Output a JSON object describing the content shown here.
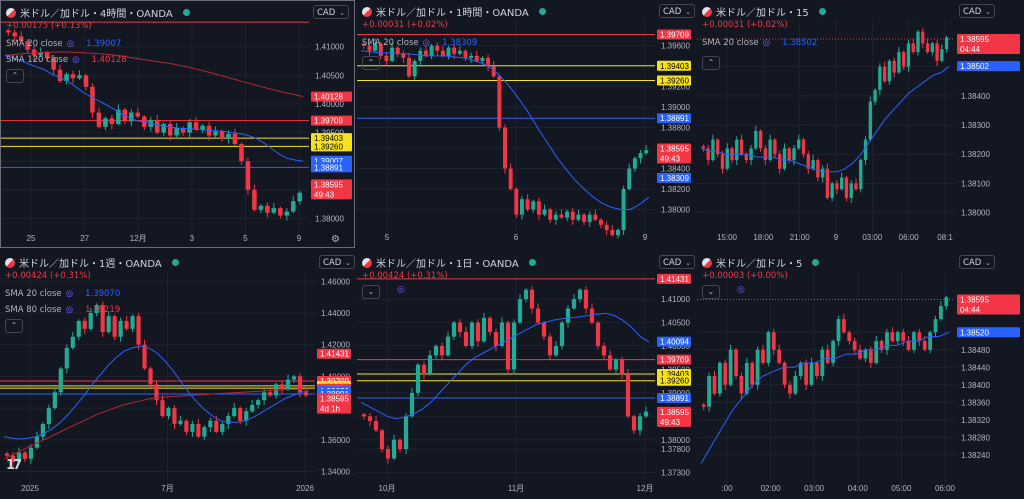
{
  "colors": {
    "up": "#22ab94",
    "down": "#f23645",
    "sma_blue": "#2962ff",
    "sma_red": "#b22833",
    "yellow": "#f7e21a",
    "bg": "#131722"
  },
  "chart_data": [
    {
      "id": "p1",
      "type": "candlestick",
      "title": "米ドル／加ドル・4時間・OANDA",
      "change": "+0.00175 (+0.13%)",
      "currency": "CAD",
      "indicators": [
        {
          "name": "SMA 20 close",
          "value": "1.39007",
          "color": "#2962ff"
        },
        {
          "name": "SMA 120 close",
          "value": "1.40128",
          "color": "#f23645"
        }
      ],
      "y_range": [
        1.3778,
        1.4145
      ],
      "y_ticks": [
        "1.41000",
        "1.40500",
        "1.40000",
        "1.39500",
        "1.39000",
        "1.38500",
        "1.38000"
      ],
      "x_ticks": [
        "25",
        "27",
        "12月",
        "3",
        "5",
        "9"
      ],
      "hlines": [
        {
          "value": 1.41431,
          "color": "#f23645"
        },
        {
          "value": 1.39709,
          "color": "#f23645"
        },
        {
          "value": 1.39403,
          "color": "#f7e21a"
        },
        {
          "value": 1.3926,
          "color": "#f7e21a"
        },
        {
          "value": 1.38891,
          "color": "#2962ff"
        }
      ],
      "labels": [
        {
          "text": "1.40128",
          "value": 1.40128,
          "bg": "#f23645",
          "fg": "#ffffff"
        },
        {
          "text": "1.39709",
          "value": 1.39709,
          "bg": "#f23645",
          "fg": "#ffffff"
        },
        {
          "text": "1.39403",
          "value": 1.39403,
          "bg": "#f7e21a",
          "fg": "#000000"
        },
        {
          "text": "1.39260",
          "value": 1.3926,
          "bg": "#f7e21a",
          "fg": "#000000"
        },
        {
          "text": "1.39007",
          "value": 1.39007,
          "bg": "#2962ff",
          "fg": "#ffffff"
        },
        {
          "text": "1.38891",
          "value": 1.38891,
          "bg": "#2962ff",
          "fg": "#ffffff"
        },
        {
          "text": "1.38595",
          "value": 1.38595,
          "bg": "#f23645",
          "fg": "#ffffff",
          "sub": "49:43"
        }
      ],
      "closes": [
        1.4125,
        1.4118,
        1.411,
        1.4095,
        1.4085,
        1.409,
        1.408,
        1.406,
        1.404,
        1.4052,
        1.4045,
        1.405,
        1.403,
        1.3985,
        1.396,
        1.3975,
        1.3965,
        1.399,
        1.397,
        1.3985,
        1.3978,
        1.396,
        1.3972,
        1.395,
        1.3965,
        1.3945,
        1.3958,
        1.395,
        1.3968,
        1.3955,
        1.3962,
        1.3945,
        1.3952,
        1.394,
        1.3948,
        1.393,
        1.39,
        1.385,
        1.3815,
        1.3822,
        1.381,
        1.3818,
        1.3805,
        1.3812,
        1.383,
        1.3845
      ],
      "sma_a": [
        1.4085,
        1.408,
        1.4076,
        1.407,
        1.4065,
        1.406,
        1.4052,
        1.4046,
        1.404,
        1.403,
        1.402,
        1.4012,
        1.4005,
        1.3998,
        1.399,
        1.3982,
        1.3975,
        1.397,
        1.3968,
        1.3965,
        1.3962,
        1.396,
        1.3958,
        1.3957,
        1.3956,
        1.3955,
        1.3954,
        1.3953,
        1.3952,
        1.395,
        1.3948,
        1.3945,
        1.394,
        1.3932,
        1.3922,
        1.3912,
        1.3905,
        1.3902,
        1.39
      ],
      "sma_b": [
        1.4085,
        1.4088,
        1.409,
        1.4091,
        1.409,
        1.4088,
        1.4085,
        1.408,
        1.4075,
        1.407,
        1.4063,
        1.4055,
        1.4046,
        1.4037,
        1.4028,
        1.402,
        1.4013
      ]
    },
    {
      "id": "p2",
      "type": "candlestick",
      "title": "米ドル／加ドル・1時間・OANDA",
      "change": "+0.00031 (+0.02%)",
      "currency": "CAD",
      "indicators": [
        {
          "name": "SMA 20 close",
          "value": "1.38309",
          "color": "#2962ff"
        }
      ],
      "y_range": [
        1.378,
        1.3985
      ],
      "y_ticks": [
        "1.39600",
        "1.39400",
        "1.39200",
        "1.39000",
        "1.38800",
        "1.38600",
        "1.38400",
        "1.38200",
        "1.38000"
      ],
      "x_ticks": [
        "5",
        "6",
        "9"
      ],
      "hlines": [
        {
          "value": 1.39709,
          "color": "#f23645"
        },
        {
          "value": 1.39403,
          "color": "#f7e21a"
        },
        {
          "value": 1.3926,
          "color": "#f7e21a"
        },
        {
          "value": 1.38891,
          "color": "#2962ff"
        }
      ],
      "labels": [
        {
          "text": "1.39709",
          "value": 1.39709,
          "bg": "#f23645",
          "fg": "#ffffff"
        },
        {
          "text": "1.39403",
          "value": 1.39403,
          "bg": "#f7e21a",
          "fg": "#000000"
        },
        {
          "text": "1.39260",
          "value": 1.3926,
          "bg": "#f7e21a",
          "fg": "#000000"
        },
        {
          "text": "1.38891",
          "value": 1.38891,
          "bg": "#2962ff",
          "fg": "#ffffff"
        },
        {
          "text": "1.38595",
          "value": 1.38595,
          "bg": "#f23645",
          "fg": "#ffffff",
          "sub": "49:43"
        },
        {
          "text": "1.38309",
          "value": 1.38309,
          "bg": "#2962ff",
          "fg": "#ffffff"
        }
      ],
      "closes": [
        1.396,
        1.3955,
        1.3962,
        1.395,
        1.3945,
        1.3958,
        1.3952,
        1.3948,
        1.393,
        1.3945,
        1.3955,
        1.395,
        1.396,
        1.3955,
        1.395,
        1.3958,
        1.3952,
        1.3955,
        1.3948,
        1.395,
        1.3945,
        1.3948,
        1.394,
        1.393,
        1.388,
        1.384,
        1.382,
        1.3795,
        1.381,
        1.38,
        1.3808,
        1.3795,
        1.38,
        1.379,
        1.3795,
        1.3792,
        1.3798,
        1.379,
        1.3795,
        1.3788,
        1.3795,
        1.379,
        1.3785,
        1.378,
        1.3775,
        1.378,
        1.382,
        1.384,
        1.385,
        1.3855,
        1.3858
      ],
      "sma_a": [
        1.3955,
        1.3954,
        1.3953,
        1.3953,
        1.3952,
        1.3952,
        1.3951,
        1.395,
        1.395,
        1.395,
        1.3949,
        1.3948,
        1.3946,
        1.3943,
        1.3938,
        1.393,
        1.392,
        1.3908,
        1.3895,
        1.388,
        1.3866,
        1.3852,
        1.384,
        1.3829,
        1.382,
        1.3812,
        1.3806,
        1.3802,
        1.38,
        1.38,
        1.3805,
        1.3812
      ]
    },
    {
      "id": "p3",
      "type": "candlestick",
      "title": "米ドル／加ドル・15",
      "change": "+0.00031 (+0.02%)",
      "currency": "CAD",
      "indicators": [
        {
          "name": "SMA 20 close",
          "value": "1.38502",
          "color": "#2962ff"
        }
      ],
      "y_range": [
        1.3794,
        1.3866
      ],
      "y_ticks": [
        "1.38500",
        "1.38400",
        "1.38300",
        "1.38200",
        "1.38100",
        "1.38000"
      ],
      "x_ticks": [
        "15:00",
        "18:00",
        "21:00",
        "9",
        "03:00",
        "06:00",
        "08:1"
      ],
      "hlines": [
        {
          "value": 1.38595,
          "color": "#f23645",
          "dotted": true
        }
      ],
      "labels": [
        {
          "text": "1.38595",
          "value": 1.38595,
          "bg": "#f23645",
          "fg": "#ffffff",
          "sub": "04:44"
        },
        {
          "text": "1.38502",
          "value": 1.38502,
          "bg": "#2962ff",
          "fg": "#ffffff"
        }
      ],
      "closes": [
        1.3822,
        1.3818,
        1.3825,
        1.382,
        1.3815,
        1.3822,
        1.3818,
        1.3825,
        1.382,
        1.3818,
        1.3822,
        1.3828,
        1.3822,
        1.3818,
        1.3825,
        1.382,
        1.3815,
        1.3822,
        1.3818,
        1.3822,
        1.3825,
        1.382,
        1.3815,
        1.3818,
        1.3812,
        1.3815,
        1.3805,
        1.381,
        1.3808,
        1.3812,
        1.3805,
        1.381,
        1.3808,
        1.3818,
        1.3825,
        1.3838,
        1.3842,
        1.385,
        1.3845,
        1.3852,
        1.3848,
        1.3855,
        1.385,
        1.3858,
        1.3855,
        1.3862,
        1.3858,
        1.3855,
        1.3858,
        1.3852,
        1.3856,
        1.386
      ],
      "sma_a": [
        1.3822,
        1.3821,
        1.3821,
        1.382,
        1.382,
        1.382,
        1.382,
        1.3819,
        1.3819,
        1.3819,
        1.3818,
        1.3818,
        1.3817,
        1.3816,
        1.3815,
        1.3814,
        1.3814,
        1.3814,
        1.3815,
        1.3817,
        1.382,
        1.3824,
        1.3828,
        1.3832,
        1.3835,
        1.3838,
        1.3841,
        1.3843,
        1.3845,
        1.3847,
        1.3848,
        1.385
      ]
    },
    {
      "id": "p4",
      "type": "candlestick",
      "title": "米ドル／加ドル・1週・OANDA",
      "change": "+0.00424 (+0.31%)",
      "currency": "CAD",
      "indicators": [
        {
          "name": "SMA 20 close",
          "value": "1.39070",
          "color": "#2962ff"
        },
        {
          "name": "SMA 80 close",
          "value": "1.39219",
          "color": "#f23645"
        }
      ],
      "y_range": [
        1.334,
        1.4665
      ],
      "y_ticks": [
        "1.46000",
        "1.44000",
        "1.42000",
        "1.40000",
        "1.38000",
        "1.36000",
        "1.34000"
      ],
      "x_ticks": [
        "2025",
        "7月",
        "2026"
      ],
      "hlines": [
        {
          "value": 1.39709,
          "color": "#f23645"
        },
        {
          "value": 1.39403,
          "color": "#f7e21a"
        },
        {
          "value": 1.3926,
          "color": "#f7e21a"
        },
        {
          "value": 1.38891,
          "color": "#2962ff"
        }
      ],
      "labels": [
        {
          "text": "1.41431",
          "value": 1.41431,
          "bg": "#f23645",
          "fg": "#ffffff"
        },
        {
          "text": "1.39709",
          "value": 1.39709,
          "bg": "#f23645",
          "fg": "#ffffff"
        },
        {
          "text": "1.39403",
          "value": 1.39403,
          "bg": "#f7e21a",
          "fg": "#000000"
        },
        {
          "text": "1.39260",
          "value": 1.3926,
          "bg": "#f7e21a",
          "fg": "#000000"
        },
        {
          "text": "1.39219",
          "value": 1.39219,
          "bg": "#f23645",
          "fg": "#ffffff"
        },
        {
          "text": "1.39070",
          "value": 1.3907,
          "bg": "#2962ff",
          "fg": "#ffffff"
        },
        {
          "text": "1.38891",
          "value": 1.38891,
          "bg": "#2962ff",
          "fg": "#ffffff"
        },
        {
          "text": "1.38595",
          "value": 1.38595,
          "bg": "#f23645",
          "fg": "#ffffff",
          "sub": "4d 1h"
        }
      ],
      "closes": [
        1.35,
        1.346,
        1.352,
        1.348,
        1.355,
        1.362,
        1.37,
        1.38,
        1.39,
        1.405,
        1.418,
        1.425,
        1.435,
        1.43,
        1.44,
        1.445,
        1.428,
        1.438,
        1.425,
        1.435,
        1.43,
        1.438,
        1.42,
        1.405,
        1.395,
        1.385,
        1.375,
        1.38,
        1.37,
        1.372,
        1.365,
        1.37,
        1.362,
        1.368,
        1.372,
        1.365,
        1.37,
        1.375,
        1.38,
        1.372,
        1.378,
        1.382,
        1.385,
        1.39,
        1.388,
        1.395,
        1.392,
        1.398,
        1.4,
        1.39,
        1.388
      ],
      "sma_a": [
        1.362,
        1.361,
        1.3605,
        1.361,
        1.362,
        1.364,
        1.367,
        1.371,
        1.376,
        1.382,
        1.388,
        1.395,
        1.401,
        1.407,
        1.412,
        1.416,
        1.418,
        1.419,
        1.418,
        1.415,
        1.41,
        1.404,
        1.397,
        1.39,
        1.384,
        1.379,
        1.375,
        1.372,
        1.371,
        1.371,
        1.372,
        1.374,
        1.377,
        1.38,
        1.383,
        1.386,
        1.388,
        1.39,
        1.3907
      ],
      "sma_b": [
        1.348,
        1.352,
        1.356,
        1.36,
        1.364,
        1.368,
        1.372,
        1.376,
        1.379,
        1.382,
        1.384,
        1.386,
        1.387,
        1.3875,
        1.388,
        1.3885,
        1.389,
        1.3895,
        1.39,
        1.3905,
        1.391,
        1.3915,
        1.3918,
        1.3921
      ]
    },
    {
      "id": "p5",
      "type": "candlestick",
      "title": "米ドル／加ドル・1日・OANDA",
      "change": "+0.00424 (+0.31%)",
      "currency": "CAD",
      "indicators": [],
      "y_range": [
        1.3712,
        1.416
      ],
      "y_ticks": [
        "1.41000",
        "1.40500",
        "1.40000",
        "1.39500",
        "1.39000",
        "1.38500",
        "1.38000",
        "1.37800",
        "1.37300"
      ],
      "x_ticks": [
        "10月",
        "11月",
        "12月"
      ],
      "hlines": [
        {
          "value": 1.41431,
          "color": "#f23645"
        },
        {
          "value": 1.39709,
          "color": "#f23645"
        },
        {
          "value": 1.39403,
          "color": "#f7e21a"
        },
        {
          "value": 1.3926,
          "color": "#f7e21a"
        },
        {
          "value": 1.38891,
          "color": "#2962ff"
        }
      ],
      "labels": [
        {
          "text": "1.41431",
          "value": 1.41431,
          "bg": "#f23645",
          "fg": "#ffffff"
        },
        {
          "text": "1.40094",
          "value": 1.40094,
          "bg": "#2962ff",
          "fg": "#ffffff"
        },
        {
          "text": "1.39709",
          "value": 1.39709,
          "bg": "#f23645",
          "fg": "#ffffff"
        },
        {
          "text": "1.39403",
          "value": 1.39403,
          "bg": "#f7e21a",
          "fg": "#000000"
        },
        {
          "text": "1.39260",
          "value": 1.3926,
          "bg": "#f7e21a",
          "fg": "#000000"
        },
        {
          "text": "1.38891",
          "value": 1.38891,
          "bg": "#2962ff",
          "fg": "#ffffff"
        },
        {
          "text": "1.38595",
          "value": 1.38595,
          "bg": "#f23645",
          "fg": "#ffffff",
          "sub": "49:43"
        }
      ],
      "closes": [
        1.385,
        1.384,
        1.382,
        1.378,
        1.376,
        1.38,
        1.378,
        1.385,
        1.39,
        1.396,
        1.394,
        1.398,
        1.4,
        1.398,
        1.402,
        1.405,
        1.403,
        1.4,
        1.405,
        1.401,
        1.406,
        1.403,
        1.4,
        1.405,
        1.395,
        1.405,
        1.41,
        1.412,
        1.408,
        1.405,
        1.402,
        1.398,
        1.4,
        1.405,
        1.408,
        1.41,
        1.412,
        1.408,
        1.405,
        1.4,
        1.398,
        1.395,
        1.397,
        1.394,
        1.385,
        1.382,
        1.385,
        1.386
      ],
      "sma_a": [
        1.388,
        1.387,
        1.386,
        1.385,
        1.3845,
        1.3848,
        1.3855,
        1.3865,
        1.388,
        1.39,
        1.392,
        1.394,
        1.396,
        1.3975,
        1.3985,
        1.3995,
        1.4005,
        1.4015,
        1.4025,
        1.4035,
        1.4045,
        1.405,
        1.4055,
        1.4058,
        1.406,
        1.4062,
        1.4065,
        1.4068,
        1.407,
        1.4065,
        1.4055,
        1.404,
        1.402,
        1.4009
      ]
    },
    {
      "id": "p6",
      "type": "candlestick",
      "title": "米ドル／加ドル・5",
      "change": "+0.00003 (+0.00%)",
      "currency": "CAD",
      "indicators": [],
      "y_range": [
        1.3818,
        1.3866
      ],
      "y_ticks": [
        "1.38520",
        "1.38480",
        "1.38440",
        "1.38400",
        "1.38360",
        "1.38320",
        "1.38280",
        "1.38240"
      ],
      "x_ticks": [
        ":00",
        "02:00",
        "03:00",
        "04:00",
        "05:00",
        "06:00"
      ],
      "hlines": [
        {
          "value": 1.38595,
          "color": "#f23645",
          "dotted": true
        }
      ],
      "labels": [
        {
          "text": "1.38595",
          "value": 1.38595,
          "bg": "#f23645",
          "fg": "#ffffff",
          "sub": "04:44"
        },
        {
          "text": "1.38520",
          "value": 1.3852,
          "bg": "#2962ff",
          "fg": "#ffffff"
        }
      ],
      "closes": [
        1.3835,
        1.3842,
        1.3838,
        1.3845,
        1.384,
        1.3848,
        1.3842,
        1.3838,
        1.3845,
        1.384,
        1.3848,
        1.3845,
        1.3852,
        1.3848,
        1.3845,
        1.384,
        1.3838,
        1.3842,
        1.3845,
        1.384,
        1.3845,
        1.3842,
        1.3848,
        1.3845,
        1.385,
        1.3855,
        1.3852,
        1.385,
        1.3848,
        1.3846,
        1.3848,
        1.3845,
        1.385,
        1.3848,
        1.3852,
        1.385,
        1.3852,
        1.385,
        1.3848,
        1.3852,
        1.385,
        1.3848,
        1.3852,
        1.3855,
        1.3858,
        1.386
      ],
      "sma_a": [
        1.3822,
        1.3826,
        1.383,
        1.3834,
        1.3837,
        1.384,
        1.3842,
        1.3843,
        1.3844,
        1.3844,
        1.3845,
        1.3845,
        1.3846,
        1.3846,
        1.3847,
        1.3847,
        1.3848,
        1.3848,
        1.3849,
        1.3849,
        1.385,
        1.385,
        1.3851,
        1.3851,
        1.3852
      ]
    }
  ]
}
